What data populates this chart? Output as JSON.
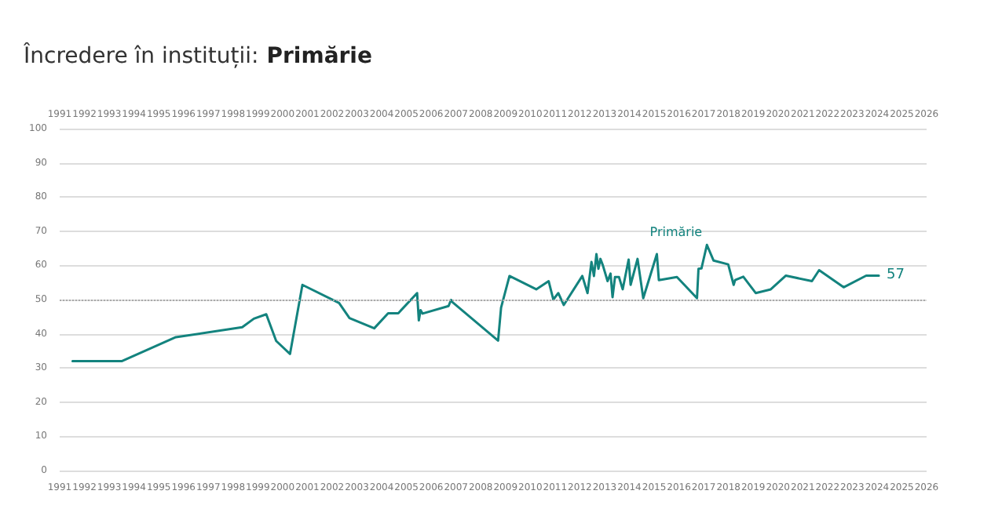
{
  "chart_data": {
    "type": "line",
    "title": "Încredere în instituții:",
    "subtitle": "Primărie",
    "x": [
      1991.52,
      1993.52,
      1995.69,
      1998.37,
      1998.84,
      1999.34,
      1999.74,
      2000.3,
      2000.8,
      2002.28,
      2002.7,
      2003.7,
      2004.26,
      2004.67,
      2005.43,
      2005.5,
      2005.57,
      2005.65,
      2006.7,
      2006.8,
      2006.85,
      2008.7,
      2008.82,
      2009.16,
      2010.24,
      2010.74,
      2010.93,
      2011.13,
      2011.35,
      2012.1,
      2012.31,
      2012.47,
      2012.57,
      2012.67,
      2012.75,
      2012.83,
      2012.93,
      2013.12,
      2013.24,
      2013.32,
      2013.42,
      2013.58,
      2013.73,
      2013.97,
      2014.05,
      2014.33,
      2014.56,
      2015.11,
      2015.19,
      2015.92,
      2016.73,
      2016.79,
      2016.91,
      2017.13,
      2017.4,
      2017.99,
      2018.21,
      2018.27,
      2018.6,
      2019.1,
      2019.71,
      2020.32,
      2021.37,
      2021.66,
      2022.65,
      2023.56,
      2024.07
    ],
    "series": [
      {
        "name": "Primărie",
        "color": "#13837e",
        "values": [
          32,
          32,
          39,
          41.9,
          44.4,
          45.7,
          37.9,
          34.1,
          54.3,
          49,
          44.6,
          41.6,
          46,
          46,
          51.9,
          43.9,
          46.9,
          45.9,
          48.1,
          49.9,
          49.3,
          38,
          47.6,
          56.9,
          53,
          55.4,
          50,
          51.9,
          48.4,
          56.9,
          51.9,
          61,
          56.9,
          63.3,
          59,
          61.9,
          60,
          55.4,
          57.6,
          50.7,
          56.6,
          56.6,
          53,
          61.7,
          54.3,
          61.9,
          50.4,
          63.3,
          55.7,
          56.6,
          50.4,
          59,
          59.1,
          66,
          61.4,
          60.3,
          54.3,
          55.7,
          56.7,
          51.9,
          53,
          57,
          55.4,
          58.6,
          53.6,
          57,
          57
        ],
        "value_labels": [
          null,
          null,
          null,
          null,
          null,
          null,
          null,
          null,
          null,
          null,
          null,
          null,
          null,
          null,
          null,
          null,
          null,
          null,
          null,
          null,
          null,
          null,
          null,
          null,
          null,
          null,
          null,
          null,
          null,
          null,
          null,
          null,
          null,
          null,
          null,
          null,
          null,
          null,
          null,
          null,
          null,
          null,
          null,
          null,
          null,
          null,
          null,
          null,
          null,
          null,
          null,
          null,
          null,
          null,
          null,
          null,
          null,
          null,
          null,
          null,
          null,
          null,
          null,
          null,
          null,
          null,
          "57"
        ]
      }
    ],
    "xlim": [
      1991,
      2026
    ],
    "xticks": [
      1991,
      1992,
      1993,
      1994,
      1995,
      1996,
      1997,
      1998,
      1999,
      2000,
      2001,
      2002,
      2003,
      2004,
      2005,
      2006,
      2007,
      2008,
      2009,
      2010,
      2011,
      2012,
      2013,
      2014,
      2015,
      2016,
      2017,
      2018,
      2019,
      2020,
      2021,
      2022,
      2023,
      2024,
      2025,
      2026
    ],
    "x2lim": [
      1991,
      2026
    ],
    "x2ticks": [
      1991,
      1992,
      1993,
      1994,
      1995,
      1996,
      1997,
      1998,
      1999,
      2000,
      2001,
      2002,
      2003,
      2004,
      2005,
      2006,
      2007,
      2008,
      2009,
      2010,
      2011,
      2012,
      2013,
      2014,
      2015,
      2016,
      2017,
      2018,
      2019,
      2020,
      2021,
      2022,
      2023,
      2024,
      2025,
      2026
    ],
    "ylim": [
      0,
      100
    ],
    "yticks": [
      0,
      10,
      20,
      30,
      40,
      50,
      60,
      70,
      80,
      90,
      100
    ],
    "ref_lines": [
      {
        "axis": "y",
        "value": 50,
        "color": "#aaaaaa",
        "line_style": "dotted"
      }
    ],
    "grid": "y",
    "legend": false,
    "marker": "none",
    "line_style": "solid"
  }
}
